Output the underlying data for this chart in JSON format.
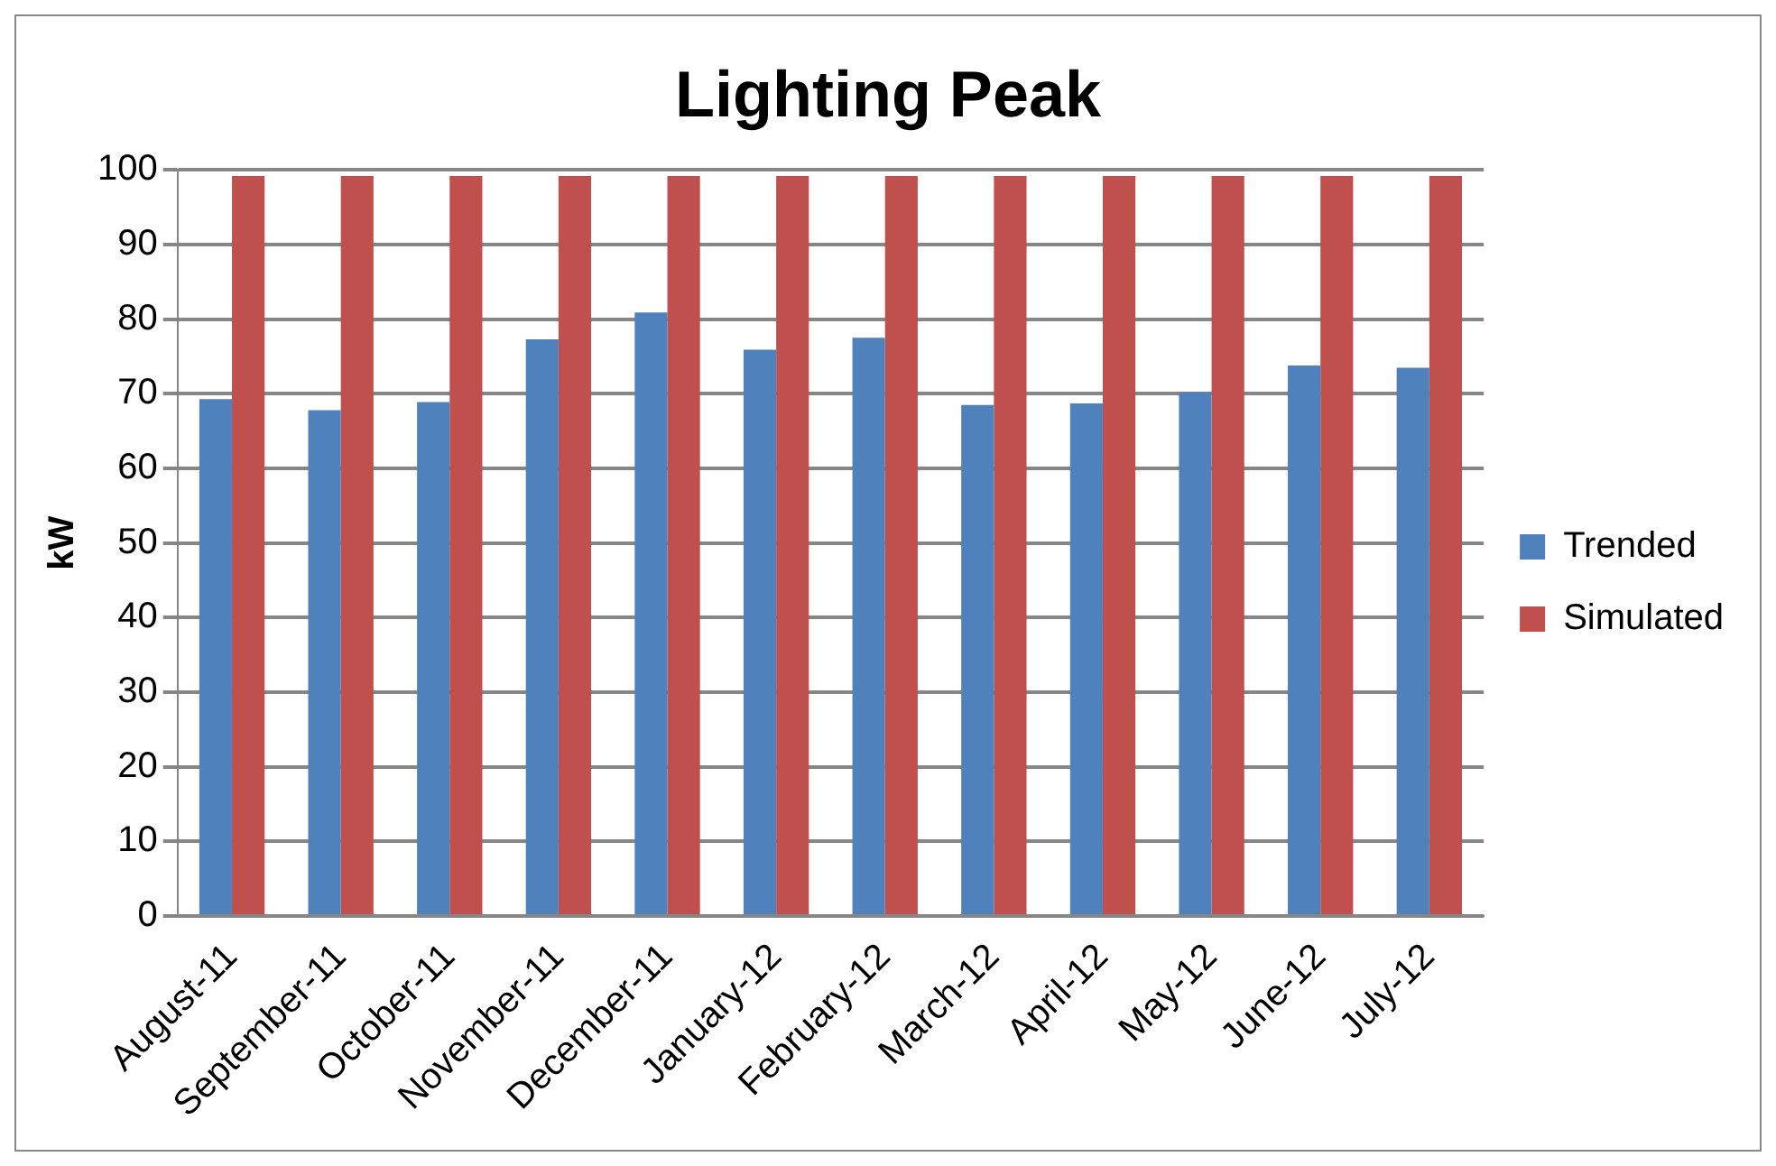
{
  "chart_data": {
    "type": "bar",
    "title": "Lighting Peak",
    "ylabel": "kW",
    "categories": [
      "August-11",
      "September-11",
      "October-11",
      "November-11",
      "December-11",
      "January-12",
      "February-12",
      "March-12",
      "April-12",
      "May-12",
      "June-12",
      "July-12"
    ],
    "series": [
      {
        "name": "Trended",
        "color": "#4f81bd",
        "values": [
          69.3,
          67.8,
          68.9,
          77.3,
          80.9,
          75.9,
          77.5,
          68.5,
          68.7,
          70.2,
          73.8,
          73.5
        ]
      },
      {
        "name": "Simulated",
        "color": "#c0504d",
        "values": [
          99.2,
          99.2,
          99.2,
          99.2,
          99.2,
          99.2,
          99.2,
          99.2,
          99.2,
          99.2,
          99.2,
          99.2
        ]
      }
    ],
    "ylim": [
      0,
      100
    ],
    "yticks": [
      0,
      10,
      20,
      30,
      40,
      50,
      60,
      70,
      80,
      90,
      100
    ],
    "grid": "y",
    "legend": "right"
  }
}
